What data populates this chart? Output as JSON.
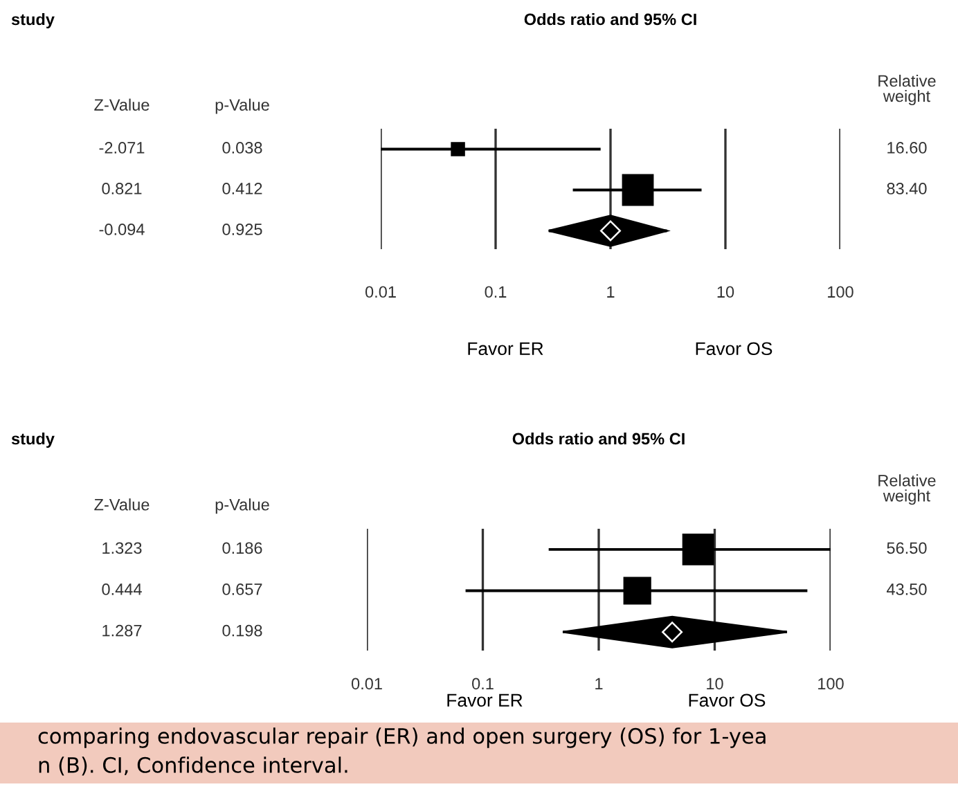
{
  "chart_data": [
    {
      "type": "bubble",
      "orientation": "horizontal",
      "title": "Odds ratio and 95% CI",
      "categories": [
        null,
        null,
        null
      ],
      "series": [
        {
          "type": "bubble",
          "marker": "square",
          "color": "#000000",
          "values": [
            0.047,
            1.73,
            null
          ],
          "errors": [
            [
              0.01,
              0.82
            ],
            [
              0.47,
              6.2
            ],
            null
          ],
          "sizes": [
            0.2,
            1,
            null
          ]
        },
        {
          "type": "scatter",
          "marker": "diamond",
          "color": "#000000",
          "values": [
            null,
            null,
            1.0
          ],
          "errors": [
            null,
            null,
            [
              0.29,
              3.1
            ]
          ]
        }
      ],
      "xlim": [
        0.01,
        100
      ],
      "xticks": [
        0.01,
        0.1,
        1,
        10,
        100
      ],
      "log": "x",
      "grid": "x",
      "tick_labels": "x",
      "annotations": [
        "study",
        "Z-Value",
        "p-Value",
        "Relative\nweight",
        "Favor ER",
        "Favor OS",
        "-2.071",
        "0.038",
        "16.60",
        "0.821",
        "0.412",
        "83.40",
        "-0.094",
        "0.925"
      ]
    },
    {
      "type": "bubble",
      "orientation": "horizontal",
      "title": "Odds ratio and 95% CI",
      "categories": [
        null,
        null,
        null
      ],
      "series": [
        {
          "type": "bubble",
          "marker": "square",
          "color": "#000000",
          "values": [
            7.2,
            2.15,
            null
          ],
          "errors": [
            [
              0.37,
              100
            ],
            [
              0.071,
              63
            ],
            null
          ],
          "sizes": [
            1,
            0.77,
            null
          ]
        },
        {
          "type": "scatter",
          "marker": "diamond",
          "color": "#000000",
          "values": [
            null,
            null,
            4.3
          ],
          "errors": [
            null,
            null,
            [
              0.49,
              42
            ]
          ]
        }
      ],
      "xlim": [
        0.01,
        100
      ],
      "xticks": [
        0.01,
        0.1,
        1,
        10,
        100
      ],
      "log": "x",
      "grid": "x",
      "tick_labels": "x",
      "annotations": [
        "study",
        "Z-Value",
        "p-Value",
        "Relative\nweight",
        "Favor ER",
        "Favor OS",
        "1.323",
        "0.186",
        "56.50",
        "0.444",
        "0.657",
        "43.50",
        "1.287",
        "0.198",
        "comparing endovascular repair (ER) and open surgery (OS) for 1-yea",
        "n (B). CI, Confidence interval."
      ]
    }
  ]
}
